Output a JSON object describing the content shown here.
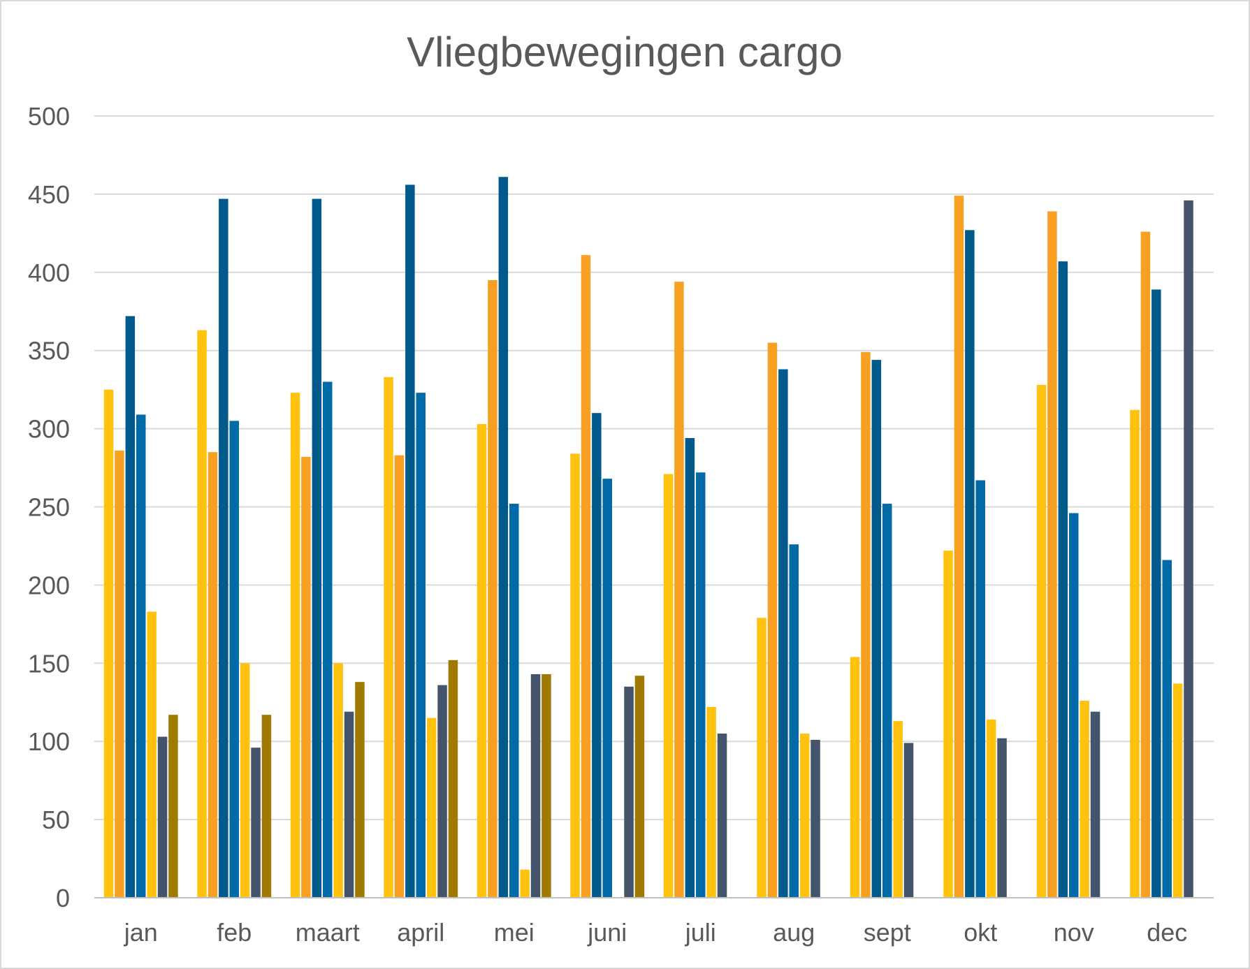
{
  "chart_data": {
    "type": "bar",
    "title": "Vliegbewegingen cargo",
    "xlabel": "",
    "ylabel": "",
    "ylim": [
      0,
      500
    ],
    "yticks": [
      0,
      50,
      100,
      150,
      200,
      250,
      300,
      350,
      400,
      450,
      500
    ],
    "grid": true,
    "legend": "none",
    "categories": [
      "jan",
      "feb",
      "maart",
      "april",
      "mei",
      "juni",
      "juli",
      "aug",
      "sept",
      "okt",
      "nov",
      "dec"
    ],
    "series": [
      {
        "color": "#FFC20E",
        "values": [
          325,
          363,
          323,
          333,
          303,
          284,
          271,
          179,
          154,
          222,
          328,
          312
        ]
      },
      {
        "color": "#F7A021",
        "values": [
          286,
          285,
          282,
          283,
          395,
          411,
          394,
          355,
          349,
          449,
          439,
          426
        ]
      },
      {
        "color": "#005A8C",
        "values": [
          372,
          447,
          447,
          456,
          461,
          310,
          294,
          338,
          344,
          427,
          407,
          389
        ]
      },
      {
        "color": "#006BA6",
        "values": [
          309,
          305,
          330,
          323,
          252,
          268,
          272,
          226,
          252,
          267,
          246,
          216
        ]
      },
      {
        "color": "#FFC20E",
        "values": [
          183,
          150,
          150,
          115,
          18,
          null,
          122,
          105,
          113,
          114,
          126,
          137
        ]
      },
      {
        "color": "#44546A",
        "values": [
          103,
          96,
          119,
          136,
          143,
          135,
          105,
          101,
          99,
          102,
          119,
          446
        ]
      },
      {
        "color": "#A07A00",
        "values": [
          117,
          117,
          138,
          152,
          143,
          142,
          null,
          null,
          null,
          null,
          null,
          null
        ]
      }
    ]
  }
}
